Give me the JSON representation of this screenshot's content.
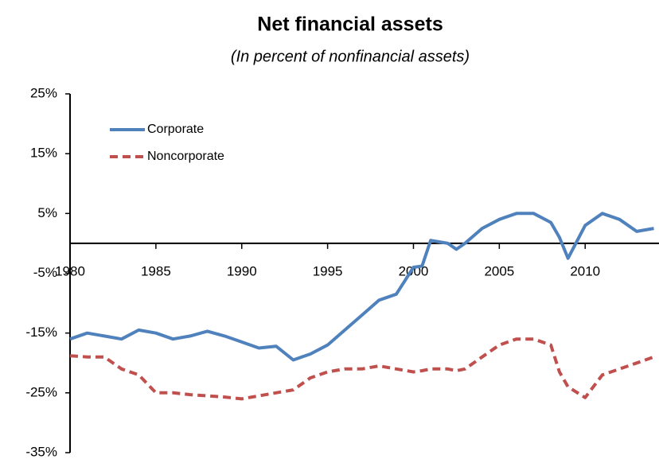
{
  "chart_data": {
    "type": "line",
    "title": "Net financial assets",
    "subtitle": "(In percent of nonfinancial assets)",
    "x": [
      1980,
      1981,
      1982,
      1983,
      1984,
      1985,
      1986,
      1987,
      1988,
      1989,
      1990,
      1991,
      1992,
      1993,
      1994,
      1995,
      1996,
      1997,
      1998,
      1999,
      2000,
      2000.5,
      2001,
      2002,
      2002.5,
      2003,
      2004,
      2005,
      2006,
      2007,
      2008,
      2008.5,
      2009,
      2010,
      2011,
      2012,
      2013,
      2014
    ],
    "series": [
      {
        "name": "Corporate",
        "color": "#4f81bd",
        "dash": false,
        "values": [
          -16,
          -15,
          -15.5,
          -16,
          -14.5,
          -15,
          -16,
          -15.5,
          -14.7,
          -15.5,
          -16.5,
          -17.5,
          -17.2,
          -19.5,
          -18.5,
          -17,
          -14.5,
          -12,
          -9.5,
          -8.5,
          -4,
          -3.8,
          0.5,
          0,
          -1,
          0,
          2.5,
          4,
          5,
          5,
          3.5,
          1,
          -2.5,
          3,
          5,
          4,
          2,
          2.5
        ]
      },
      {
        "name": "Noncorporate",
        "color": "#c0504d",
        "dash": true,
        "values": [
          -18.8,
          -19,
          -19,
          -21,
          -22,
          -25,
          -25,
          -25.3,
          -25.5,
          -25.7,
          -26,
          -25.5,
          -25,
          -24.5,
          -22.5,
          -21.5,
          -21,
          -21,
          -20.5,
          -21,
          -21.5,
          -21.3,
          -21,
          -21,
          -21.3,
          -21,
          -19,
          -17,
          -16,
          -16,
          -17,
          -21.5,
          -24,
          -25.8,
          -22,
          -21,
          -20,
          -19
        ]
      }
    ],
    "xlim": [
      1980,
      2014.3
    ],
    "xticks": [
      1980,
      1985,
      1990,
      1995,
      2000,
      2005,
      2010
    ],
    "ylim": [
      -35,
      25
    ],
    "yticks": [
      {
        "value": -35,
        "label": "-35%"
      },
      {
        "value": -25,
        "label": "-25%"
      },
      {
        "value": -15,
        "label": "-15%"
      },
      {
        "value": -5,
        "label": "-5%"
      },
      {
        "value": 5,
        "label": "5%"
      },
      {
        "value": 15,
        "label": "15%"
      },
      {
        "value": 25,
        "label": "25%"
      }
    ],
    "legend": "upper-left"
  }
}
